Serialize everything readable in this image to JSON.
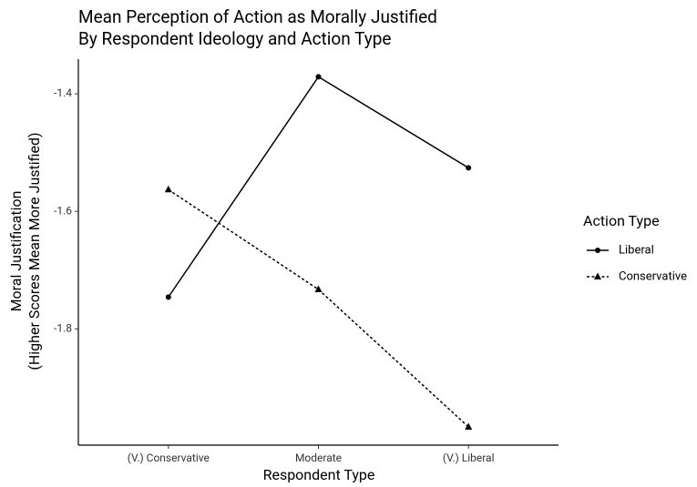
{
  "chart_data": {
    "type": "line",
    "title": [
      "Mean Perception of Action as Morally Justified",
      "By Respondent Ideology and Action Type"
    ],
    "x_label": "Respondent Type",
    "y_label": [
      "Moral Justification",
      "(Higher Scores Mean More Justified)"
    ],
    "categories": [
      "(V.) Conservative",
      "Moderate",
      "(V.) Liberal"
    ],
    "series": [
      {
        "name": "Liberal",
        "color": "#000000",
        "line_style": "solid",
        "marker": "circle",
        "values": [
          -1.746,
          -1.371,
          -1.526
        ]
      },
      {
        "name": "Conservative",
        "color": "#000000",
        "line_style": "dashed",
        "marker": "triangle",
        "values": [
          -1.563,
          -1.733,
          -1.967
        ]
      }
    ],
    "ylim": [
      -1.998,
      -1.341
    ],
    "yticks": [
      -1.4,
      -1.6,
      -1.8
    ],
    "grid": false,
    "legend_title": "Action Type",
    "legend": "right"
  }
}
